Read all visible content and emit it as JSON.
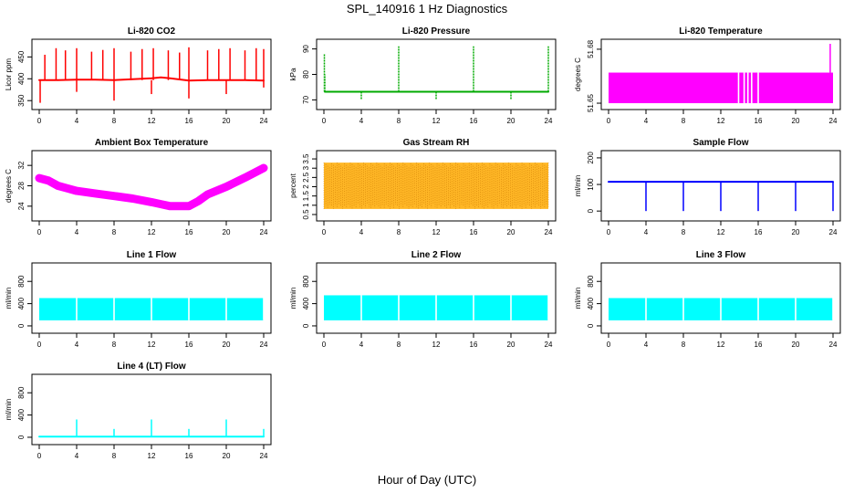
{
  "page": {
    "title": "SPL_140916  1 Hz Diagnostics",
    "x_axis_title": "Hour of Day (UTC)"
  },
  "chart_data": [
    {
      "type": "line",
      "title": "Li-820 CO2",
      "ylabel": "Licor ppm",
      "color": "#ff0000",
      "xlim": [
        0,
        24
      ],
      "ylim": [
        340,
        480
      ],
      "x_ticks": [
        0,
        4,
        8,
        12,
        16,
        20,
        24
      ],
      "y_ticks": [
        350,
        400,
        450
      ],
      "series": [
        {
          "x": [
            0,
            2,
            4,
            6,
            8,
            10,
            12,
            13,
            14,
            16,
            18,
            20,
            22,
            24
          ],
          "y": [
            397,
            397,
            398,
            398,
            397,
            399,
            401,
            403,
            401,
            396,
            397,
            397,
            397,
            396
          ]
        }
      ],
      "spikes_up": [
        [
          0.6,
          455
        ],
        [
          1.8,
          470
        ],
        [
          2.8,
          465
        ],
        [
          4.0,
          470
        ],
        [
          5.6,
          462
        ],
        [
          6.8,
          466
        ],
        [
          8.0,
          470
        ],
        [
          9.8,
          462
        ],
        [
          11.0,
          468
        ],
        [
          12.2,
          470
        ],
        [
          13.8,
          465
        ],
        [
          15.0,
          460
        ],
        [
          16.0,
          472
        ],
        [
          18.0,
          465
        ],
        [
          19.2,
          468
        ],
        [
          20.4,
          470
        ],
        [
          22.0,
          465
        ],
        [
          23.2,
          470
        ],
        [
          24.0,
          468
        ]
      ],
      "spikes_down": [
        [
          0.1,
          345
        ],
        [
          4.0,
          370
        ],
        [
          8.0,
          350
        ],
        [
          12.0,
          365
        ],
        [
          16.0,
          355
        ],
        [
          20.0,
          365
        ],
        [
          24.0,
          380
        ]
      ]
    },
    {
      "type": "line",
      "title": "Li-820 Pressure",
      "ylabel": "kPa",
      "color": "#00aa00",
      "xlim": [
        0,
        24
      ],
      "ylim": [
        68,
        92
      ],
      "x_ticks": [
        0,
        4,
        8,
        12,
        16,
        20,
        24
      ],
      "y_ticks": [
        70,
        80,
        90
      ],
      "series": [
        {
          "x": [
            0.1,
            24
          ],
          "y": [
            73.2,
            73.2
          ]
        }
      ],
      "spikes_up": [
        [
          0.05,
          88
        ],
        [
          0.1,
          80
        ],
        [
          8.0,
          91
        ],
        [
          16.0,
          91
        ],
        [
          24.0,
          91
        ]
      ],
      "spikes_down": [
        [
          4.0,
          70
        ],
        [
          12.0,
          70
        ],
        [
          20.0,
          70
        ]
      ]
    },
    {
      "type": "area",
      "title": "Li-820 Temperature",
      "ylabel": "degrees C",
      "color": "#ff00ff",
      "xlim": [
        0,
        24
      ],
      "ylim": [
        51.649,
        51.683
      ],
      "x_ticks": [
        0,
        4,
        8,
        12,
        16,
        20,
        24
      ],
      "y_ticks": [
        51.65,
        51.68
      ],
      "band": [
        51.65,
        51.667
      ],
      "gaps": [
        13.9,
        14.5,
        14.9,
        15.3,
        16.0
      ],
      "spike": [
        23.7,
        51.683
      ]
    },
    {
      "type": "line",
      "title": "Ambient Box Temperature",
      "ylabel": "degrees C",
      "color": "#ff00ff",
      "xlim": [
        0,
        24
      ],
      "ylim": [
        22,
        34
      ],
      "x_ticks": [
        0,
        4,
        8,
        12,
        16,
        20,
        24
      ],
      "y_ticks": [
        24,
        28,
        32
      ],
      "series": [
        {
          "x": [
            0,
            1,
            2,
            3,
            4,
            6,
            8,
            10,
            12,
            13,
            14,
            15,
            16,
            17,
            18,
            20,
            22,
            24
          ],
          "y": [
            29.5,
            29.0,
            28.0,
            27.5,
            27.0,
            26.5,
            26.0,
            25.5,
            24.8,
            24.4,
            24.0,
            24.0,
            24.0,
            25.0,
            26.3,
            27.8,
            29.6,
            31.5
          ]
        }
      ]
    },
    {
      "type": "line",
      "title": "Gas Stream RH",
      "ylabel": "percent",
      "color": "#ffaa00",
      "xlim": [
        0,
        24
      ],
      "ylim": [
        0.4,
        3.7
      ],
      "x_ticks": [
        0,
        4,
        8,
        12,
        16,
        20,
        24
      ],
      "y_ticks": [
        0.5,
        1.0,
        1.5,
        2.0,
        2.5,
        3.0,
        3.5
      ],
      "band": [
        0.8,
        3.3
      ]
    },
    {
      "type": "line",
      "title": "Sample Flow",
      "ylabel": "ml/min",
      "color": "#0000ff",
      "xlim": [
        0,
        24
      ],
      "ylim": [
        -20,
        210
      ],
      "x_ticks": [
        0,
        4,
        8,
        12,
        16,
        20,
        24
      ],
      "y_ticks": [
        0,
        100,
        200
      ],
      "series": [
        {
          "x": [
            0,
            24
          ],
          "y": [
            110,
            110
          ]
        }
      ],
      "spikes_down": [
        [
          4.0,
          0
        ],
        [
          8.0,
          0
        ],
        [
          12.0,
          0
        ],
        [
          16.0,
          0
        ],
        [
          20.0,
          0
        ],
        [
          24.0,
          0
        ]
      ]
    },
    {
      "type": "area",
      "title": "Line 1 Flow",
      "ylabel": "ml/min",
      "color": "#00ffff",
      "xlim": [
        0,
        24
      ],
      "ylim": [
        -50,
        1050
      ],
      "x_ticks": [
        0,
        4,
        8,
        12,
        16,
        20,
        24
      ],
      "y_ticks": [
        0,
        400,
        800
      ],
      "band": [
        100,
        500
      ],
      "gaps": [
        4.0,
        8.0,
        12.0,
        16.0,
        20.0,
        24.0
      ]
    },
    {
      "type": "area",
      "title": "Line 2 Flow",
      "ylabel": "ml/min",
      "color": "#00ffff",
      "xlim": [
        0,
        24
      ],
      "ylim": [
        -50,
        1050
      ],
      "x_ticks": [
        0,
        4,
        8,
        12,
        16,
        20,
        24
      ],
      "y_ticks": [
        0,
        400,
        800
      ],
      "band": [
        100,
        550
      ],
      "gaps": [
        4.0,
        8.0,
        12.0,
        16.0,
        20.0,
        24.0
      ]
    },
    {
      "type": "area",
      "title": "Line 3 Flow",
      "ylabel": "ml/min",
      "color": "#00ffff",
      "xlim": [
        0,
        24
      ],
      "ylim": [
        -50,
        1050
      ],
      "x_ticks": [
        0,
        4,
        8,
        12,
        16,
        20,
        24
      ],
      "y_ticks": [
        0,
        400,
        800
      ],
      "band": [
        100,
        500
      ],
      "gaps": [
        4.0,
        8.0,
        12.0,
        16.0,
        20.0,
        24.0
      ]
    },
    {
      "type": "line",
      "title": "Line 4 (LT) Flow",
      "ylabel": "ml/min",
      "color": "#00ffff",
      "xlim": [
        0,
        24
      ],
      "ylim": [
        -50,
        1050
      ],
      "x_ticks": [
        0,
        4,
        8,
        12,
        16,
        20,
        24
      ],
      "y_ticks": [
        0,
        400,
        800
      ],
      "series": [
        {
          "x": [
            0,
            24
          ],
          "y": [
            10,
            10
          ]
        }
      ],
      "spikes_up": [
        [
          4.0,
          320
        ],
        [
          8.0,
          150
        ],
        [
          12.0,
          320
        ],
        [
          16.0,
          150
        ],
        [
          20.0,
          320
        ],
        [
          24.0,
          150
        ]
      ]
    }
  ]
}
